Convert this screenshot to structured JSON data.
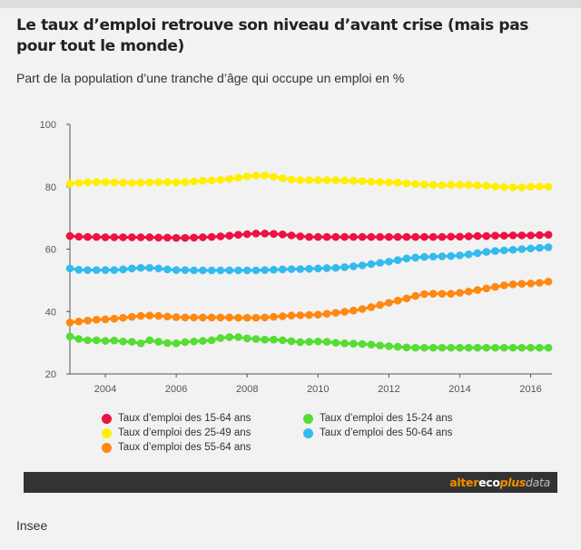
{
  "title": "Le taux d’emploi retrouve son niveau d’avant crise (mais pas pour tout le monde)",
  "subtitle": "Part de la population d’une tranche d’âge qui occupe un emploi en %",
  "source": "Insee",
  "brand": {
    "part1": "alter",
    "part2": "eco",
    "part3": "plus",
    "part4": "data"
  },
  "chart_data": {
    "type": "line",
    "x_start": 2003.0,
    "x_step": 0.25,
    "xlim": [
      2003.0,
      2016.6
    ],
    "ylim": [
      20,
      100
    ],
    "x_ticks": [
      2004,
      2006,
      2008,
      2010,
      2012,
      2014,
      2016
    ],
    "y_ticks": [
      20,
      40,
      60,
      80,
      100
    ],
    "grid": false,
    "legend_position": "bottom",
    "series": [
      {
        "name": "Taux d’emploi des 15-64 ans",
        "color": "#ee1144",
        "values": [
          64.2,
          64.0,
          63.9,
          63.9,
          63.8,
          63.8,
          63.8,
          63.8,
          63.8,
          63.8,
          63.7,
          63.7,
          63.6,
          63.6,
          63.7,
          63.8,
          63.9,
          64.1,
          64.3,
          64.6,
          64.8,
          65.0,
          65.0,
          64.9,
          64.7,
          64.4,
          64.1,
          63.9,
          63.9,
          63.9,
          63.9,
          63.9,
          63.9,
          63.9,
          63.9,
          63.9,
          63.9,
          63.9,
          63.9,
          63.9,
          63.9,
          63.9,
          63.9,
          64.0,
          64.0,
          64.1,
          64.2,
          64.2,
          64.3,
          64.3,
          64.4,
          64.4,
          64.4,
          64.5,
          64.6
        ]
      },
      {
        "name": "Taux d’emploi des 25-49 ans",
        "color": "#ffee00",
        "values": [
          81.0,
          81.2,
          81.4,
          81.5,
          81.5,
          81.4,
          81.3,
          81.2,
          81.3,
          81.4,
          81.5,
          81.5,
          81.4,
          81.5,
          81.7,
          81.9,
          82.0,
          82.2,
          82.5,
          82.9,
          83.3,
          83.6,
          83.6,
          83.2,
          82.7,
          82.3,
          82.1,
          82.1,
          82.1,
          82.1,
          82.1,
          82.0,
          81.9,
          81.8,
          81.6,
          81.5,
          81.4,
          81.3,
          81.1,
          80.9,
          80.7,
          80.6,
          80.5,
          80.6,
          80.6,
          80.6,
          80.4,
          80.3,
          80.1,
          79.9,
          79.8,
          79.8,
          80.0,
          80.1,
          80.0
        ]
      },
      {
        "name": "Taux d’emploi des 15-24 ans",
        "color": "#55dd33",
        "values": [
          32.0,
          31.2,
          30.8,
          30.8,
          30.6,
          30.7,
          30.4,
          30.3,
          29.8,
          30.8,
          30.3,
          29.9,
          29.8,
          30.2,
          30.4,
          30.6,
          30.8,
          31.5,
          31.8,
          31.8,
          31.4,
          31.2,
          31.0,
          31.0,
          30.8,
          30.5,
          30.2,
          30.3,
          30.4,
          30.3,
          30.0,
          29.8,
          29.7,
          29.6,
          29.4,
          29.1,
          28.9,
          28.7,
          28.5,
          28.4,
          28.4,
          28.4,
          28.4,
          28.4,
          28.4,
          28.4,
          28.4,
          28.4,
          28.4,
          28.4,
          28.4,
          28.4,
          28.4,
          28.4,
          28.4
        ]
      },
      {
        "name": "Taux d’emploi des 50-64 ans",
        "color": "#33bbee",
        "values": [
          53.8,
          53.4,
          53.3,
          53.3,
          53.3,
          53.3,
          53.5,
          53.8,
          54.0,
          54.0,
          53.8,
          53.5,
          53.3,
          53.3,
          53.2,
          53.2,
          53.2,
          53.2,
          53.2,
          53.2,
          53.2,
          53.2,
          53.3,
          53.4,
          53.5,
          53.6,
          53.6,
          53.7,
          53.8,
          53.9,
          54.0,
          54.2,
          54.5,
          54.8,
          55.2,
          55.6,
          56.0,
          56.5,
          57.0,
          57.3,
          57.5,
          57.6,
          57.7,
          57.8,
          58.0,
          58.3,
          58.7,
          59.1,
          59.4,
          59.6,
          59.8,
          60.0,
          60.2,
          60.4,
          60.6
        ]
      },
      {
        "name": "Taux d’emploi des 55-64 ans",
        "color": "#ff8811",
        "values": [
          36.5,
          36.8,
          37.1,
          37.4,
          37.5,
          37.7,
          38.0,
          38.3,
          38.6,
          38.7,
          38.6,
          38.4,
          38.2,
          38.1,
          38.1,
          38.1,
          38.1,
          38.1,
          38.1,
          38.0,
          38.0,
          38.0,
          38.1,
          38.3,
          38.5,
          38.7,
          38.8,
          38.9,
          39.0,
          39.3,
          39.6,
          39.9,
          40.3,
          40.8,
          41.4,
          42.1,
          42.8,
          43.5,
          44.2,
          45.0,
          45.6,
          45.7,
          45.7,
          45.7,
          46.0,
          46.4,
          46.9,
          47.4,
          47.9,
          48.4,
          48.7,
          48.9,
          49.0,
          49.2,
          49.6
        ]
      }
    ]
  }
}
